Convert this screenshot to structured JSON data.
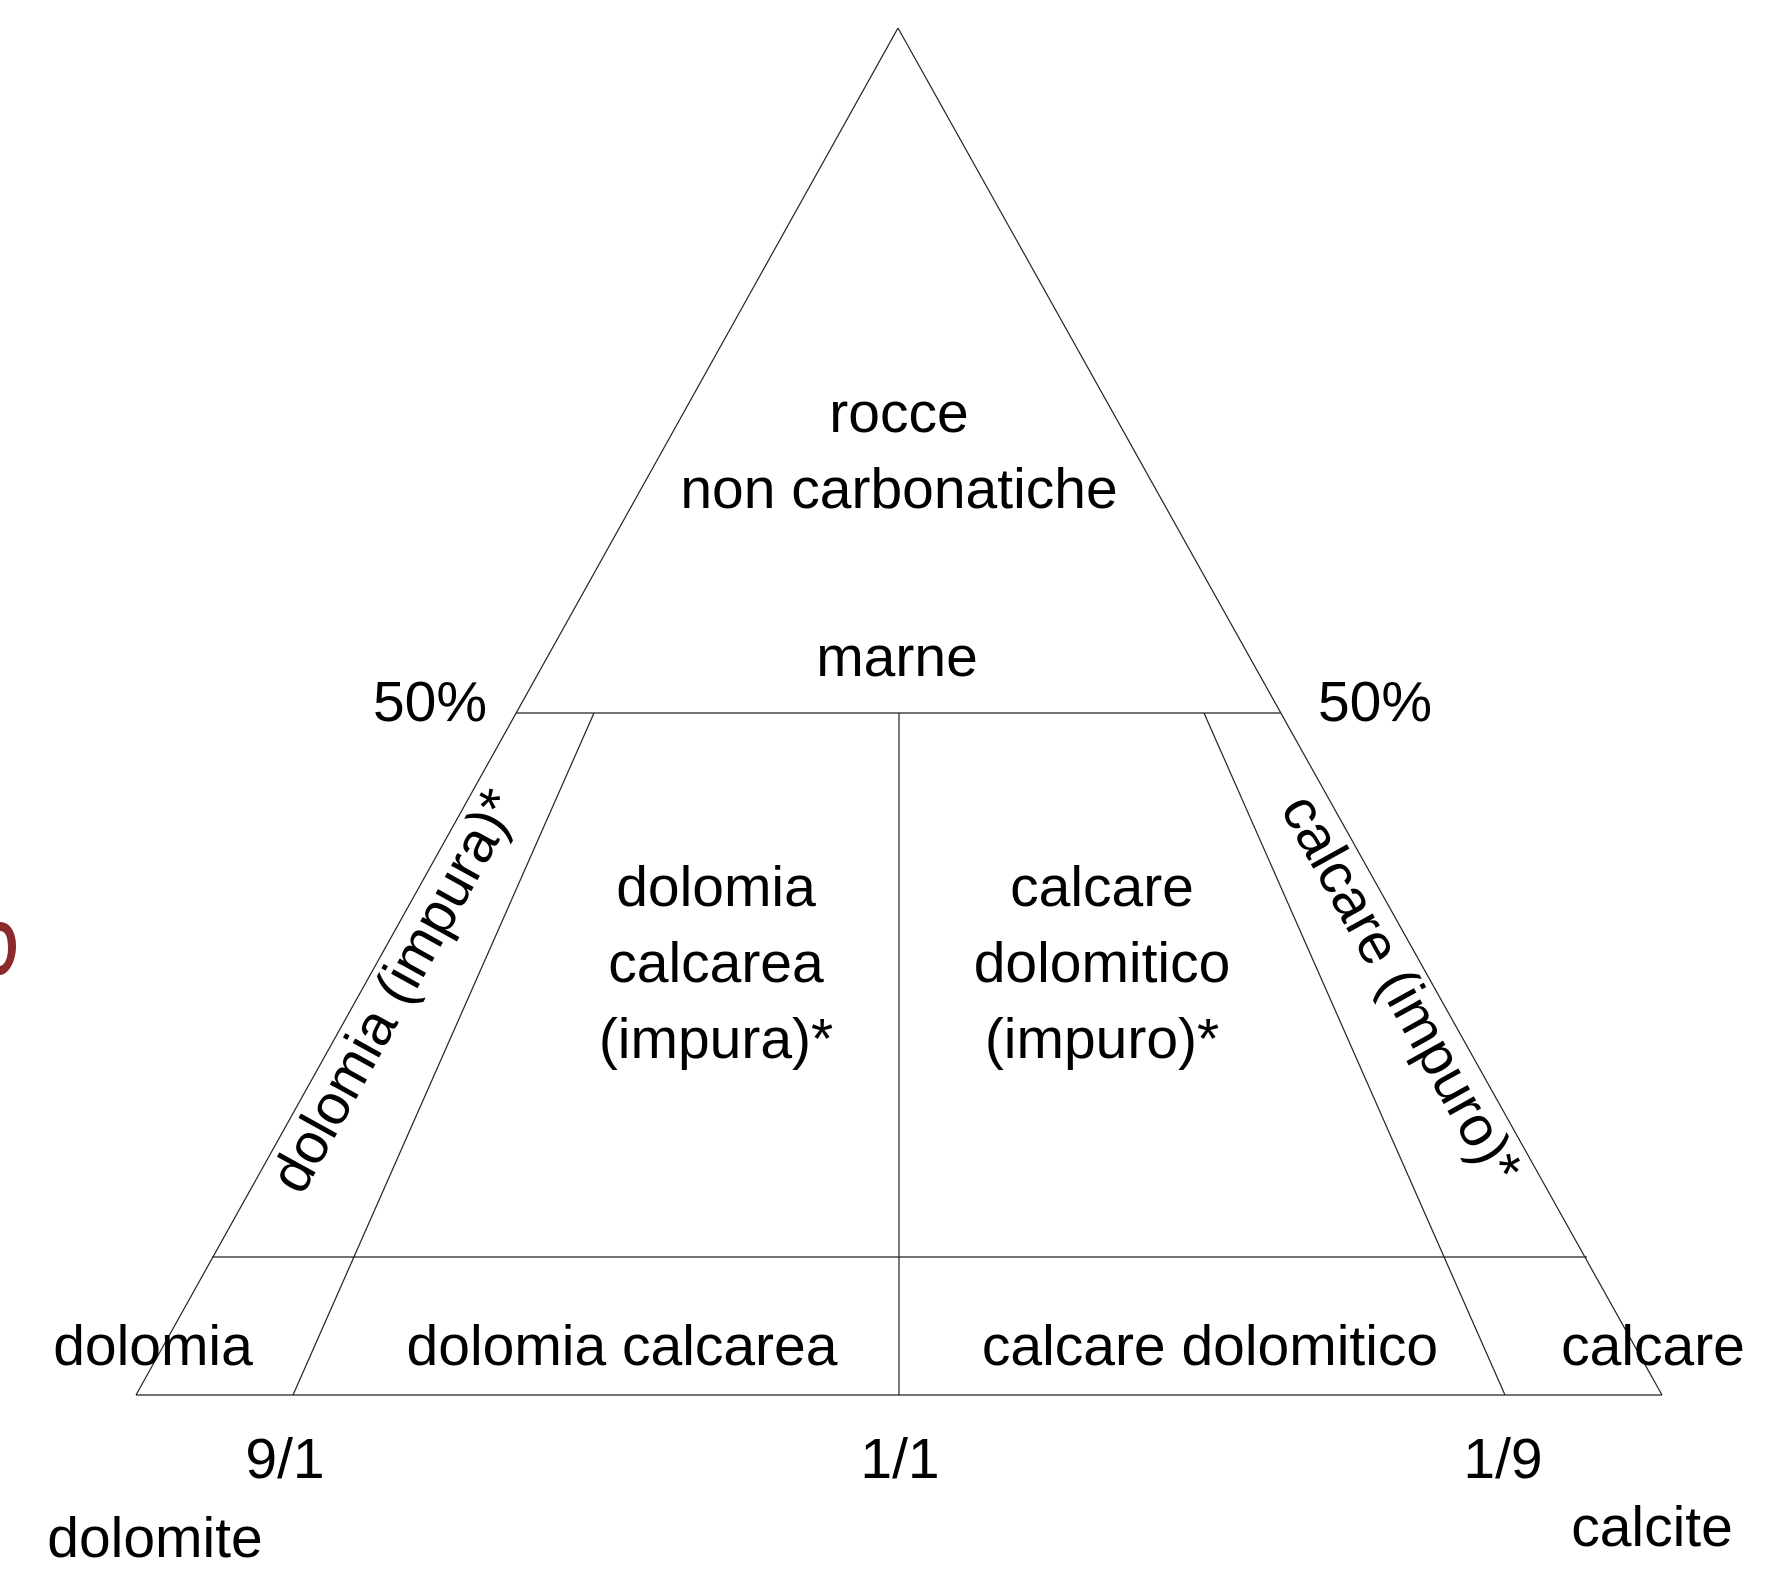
{
  "colors": {
    "line": "#222222",
    "text": "#000000",
    "edge_fragment": "#8b2a2a"
  },
  "regions": {
    "top": [
      "rocce",
      "non carbonatiche"
    ],
    "marne": "marne",
    "dolomia_impura": "dolomia (impura)*",
    "dolomia_calcarea_impura": [
      "dolomia",
      "calcarea",
      "(impura)*"
    ],
    "calcare_dolomitico_impuro": [
      "calcare",
      "dolomitico",
      "(impuro)*"
    ],
    "calcare_impuro": "calcare (impuro)*",
    "dolomia": "dolomia",
    "dolomia_calcarea": "dolomia calcarea",
    "calcare_dolomitico": "calcare dolomitico",
    "calcare": "calcare"
  },
  "percent_labels": {
    "left": "50%",
    "right": "50%"
  },
  "ratio_labels": {
    "left": "9/1",
    "middle": "1/1",
    "right": "1/9"
  },
  "endmembers": {
    "left": "dolomite",
    "right": "calcite"
  }
}
